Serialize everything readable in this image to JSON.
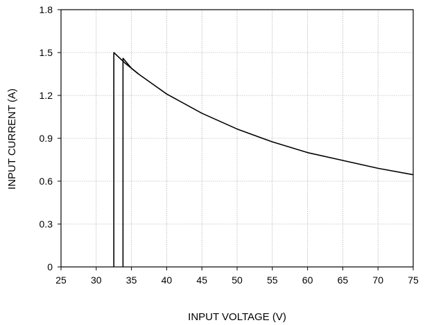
{
  "chart_data": {
    "type": "line",
    "title": "",
    "xlabel": "INPUT VOLTAGE (V)",
    "ylabel": "INPUT CURRENT (A)",
    "xlim": [
      25,
      75
    ],
    "ylim": [
      0,
      1.8
    ],
    "xticks": [
      "25",
      "30",
      "35",
      "40",
      "45",
      "50",
      "55",
      "60",
      "65",
      "70",
      "75"
    ],
    "yticks": [
      "0",
      "0.3",
      "0.6",
      "0.9",
      "1.2",
      "1.5",
      "1.8"
    ],
    "grid": true,
    "legend": "none",
    "line_color": "#000000",
    "grid_color": "#999999",
    "series": [
      {
        "x": [
          32.5,
          32.5,
          34.0,
          36,
          38,
          40,
          45,
          50,
          55,
          60,
          65,
          70,
          75
        ],
        "y": [
          0,
          1.5,
          1.43,
          1.35,
          1.28,
          1.21,
          1.075,
          0.965,
          0.875,
          0.8,
          0.745,
          0.69,
          0.645
        ]
      },
      {
        "x": [
          33.8,
          33.8,
          35.0,
          36
        ],
        "y": [
          0,
          1.46,
          1.39,
          1.35
        ]
      }
    ]
  }
}
